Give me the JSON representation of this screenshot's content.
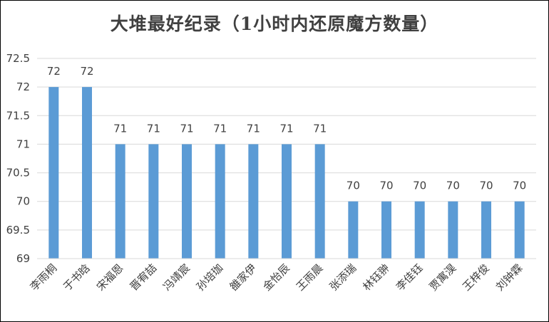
{
  "chart_data": {
    "type": "bar",
    "title": "大堆最好纪录（1小时内还原魔方数量）",
    "categories": [
      "李雨桐",
      "于书晗",
      "宋福恩",
      "晋宥喆",
      "冯靖宸",
      "孙培珈",
      "雒家伊",
      "金怡辰",
      "王雨晨",
      "张添瑞",
      "林钰翀",
      "李佳钰",
      "贾寓淏",
      "王梓俊",
      "刘钟霖"
    ],
    "values": [
      72,
      72,
      71,
      71,
      71,
      71,
      71,
      71,
      71,
      70,
      70,
      70,
      70,
      70,
      70
    ],
    "ylim": [
      69,
      72.5
    ],
    "yticks": [
      "69",
      "69.5",
      "70",
      "70.5",
      "71",
      "71.5",
      "72",
      "72.5"
    ],
    "grid": true,
    "bar_color": "#5B9BD5",
    "xlabel": "",
    "ylabel": ""
  }
}
